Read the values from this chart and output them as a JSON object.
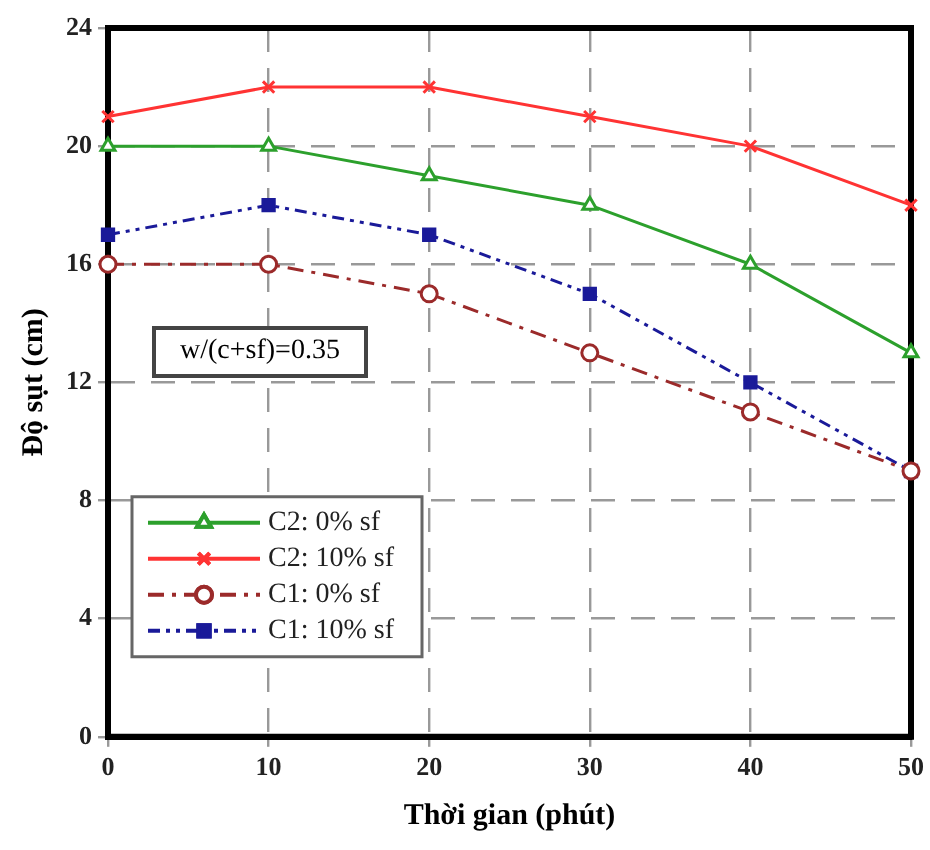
{
  "chart_data": {
    "type": "line",
    "xlabel": "Thời gian (phút)",
    "ylabel": "Độ sụt (cm)",
    "x": [
      0,
      10,
      20,
      30,
      40,
      50
    ],
    "xlim": [
      0,
      50
    ],
    "xticks": [
      0,
      10,
      20,
      30,
      40,
      50
    ],
    "ylim": [
      0,
      24
    ],
    "yticks": [
      0,
      4,
      8,
      12,
      16,
      20,
      24
    ],
    "grid": true,
    "legend": "bottom left",
    "annotations": [
      "w/(c+sf)=0.35"
    ],
    "series": [
      {
        "name": "C2: 0% sf",
        "color": "#2ca02c",
        "marker": "triangle",
        "line_style": "solid",
        "values": [
          20,
          20,
          19,
          18,
          16,
          13
        ]
      },
      {
        "name": "C2: 10% sf",
        "color": "#ff3333",
        "marker": "cross",
        "line_style": "solid",
        "values": [
          21,
          22,
          22,
          21,
          20,
          18
        ]
      },
      {
        "name": "C1: 0% sf",
        "color": "#9b2a2a",
        "marker": "circle",
        "line_style": "dashed",
        "values": [
          16,
          16,
          15,
          13,
          11,
          9
        ]
      },
      {
        "name": "C1: 10% sf",
        "color": "#1a1a99",
        "marker": "square",
        "line_style": "dotted",
        "values": [
          17,
          18,
          17,
          15,
          12,
          9
        ]
      }
    ]
  }
}
